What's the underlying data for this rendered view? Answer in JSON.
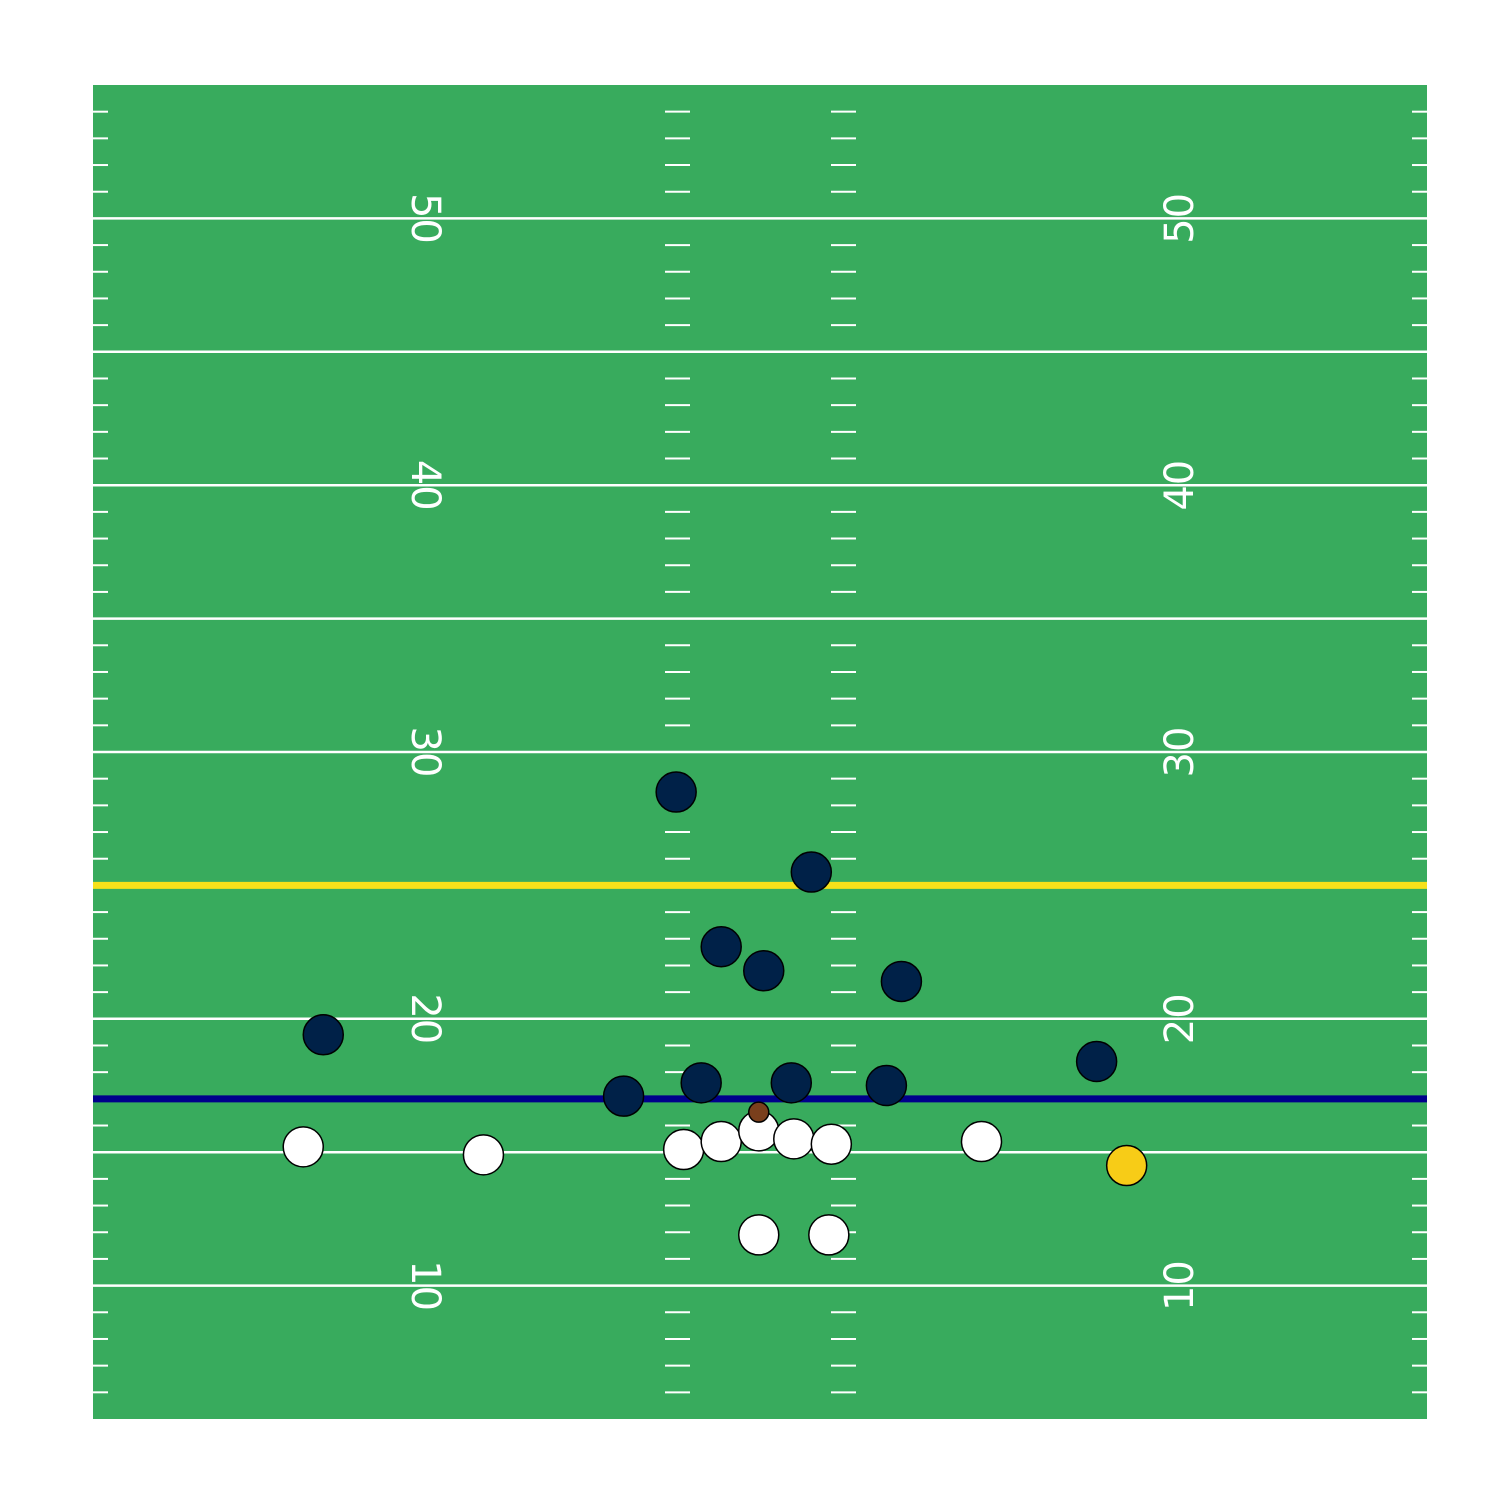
{
  "chart_data": {
    "type": "scatter",
    "title": "",
    "xlabel": "",
    "ylabel": "",
    "x_range": [
      0,
      53.3
    ],
    "y_range": [
      5,
      55
    ],
    "grid": false,
    "colors": {
      "field": "#38ab5d",
      "lines": "#ffffff",
      "first_down_line": "#f6e11a",
      "line_of_scrimmage": "#00008b",
      "defense": "#002148",
      "offense": "#ffffff",
      "ball_carrier": "#f7cc17",
      "football": "#7a3f1c"
    },
    "yard_labels": [
      "50",
      "40",
      "30",
      "20",
      "10"
    ],
    "yard_label_values": [
      50,
      40,
      30,
      20,
      10
    ],
    "yard_lines": [
      10,
      15,
      20,
      25,
      30,
      35,
      40,
      45,
      50
    ],
    "first_down_line": 25,
    "line_of_scrimmage": 17,
    "series": [
      {
        "role": "defense",
        "x": [
          9.2,
          23.3,
          28.7,
          25.1,
          26.8,
          32.3,
          40.1,
          21.2,
          24.3,
          27.9,
          31.7
        ],
        "y": [
          19.4,
          28.5,
          25.5,
          22.7,
          21.8,
          21.4,
          18.4,
          17.1,
          17.6,
          17.6,
          17.5
        ]
      },
      {
        "role": "offense",
        "x": [
          8.4,
          15.6,
          23.6,
          25.1,
          26.6,
          28.0,
          29.5,
          35.5,
          26.6,
          29.4
        ],
        "y": [
          15.2,
          14.9,
          15.1,
          15.4,
          15.8,
          15.5,
          15.3,
          15.4,
          11.9,
          11.9
        ]
      },
      {
        "role": "ball_carrier",
        "x": [
          41.3
        ],
        "y": [
          14.5
        ]
      },
      {
        "role": "football",
        "x": [
          26.6
        ],
        "y": [
          16.5
        ]
      }
    ]
  }
}
